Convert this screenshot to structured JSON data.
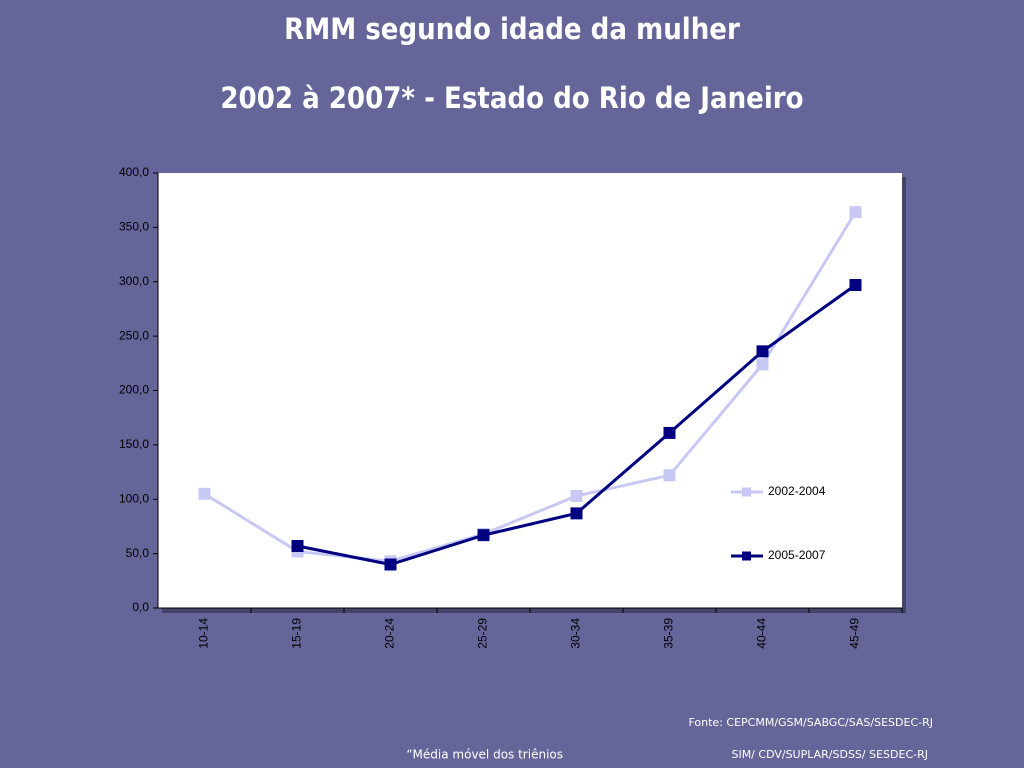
{
  "chart_data": {
    "type": "line",
    "title": "RMM segundo idade da mulher",
    "subtitle": "2002 à 2007* - Estado do Rio de Janeiro",
    "categories": [
      "10-14",
      "15-19",
      "20-24",
      "25-29",
      "30-34",
      "35-39",
      "40-44",
      "45-49"
    ],
    "series": [
      {
        "name": "2002-2004",
        "color": "#c8c8f4",
        "values": [
          105,
          52,
          43,
          68,
          103,
          122,
          224,
          364
        ]
      },
      {
        "name": "2005-2007",
        "color": "#000080",
        "values": [
          null,
          57,
          40,
          67,
          87,
          161,
          236,
          297
        ]
      }
    ],
    "ylim": [
      0,
      400
    ],
    "yticks": [
      {
        "value": 0,
        "label": "0,0"
      },
      {
        "value": 50,
        "label": "50,0"
      },
      {
        "value": 100,
        "label": "100,0"
      },
      {
        "value": 150,
        "label": "150,0"
      },
      {
        "value": 200,
        "label": "200,0"
      },
      {
        "value": 250,
        "label": "250,0"
      },
      {
        "value": 300,
        "label": "300,0"
      },
      {
        "value": 350,
        "label": "350,0"
      },
      {
        "value": 400,
        "label": "400,0"
      }
    ],
    "grid": false,
    "legend": "right",
    "annotations": [
      "Fonte: CEPCMM/GSM/SABGC/SAS/SESDEC-RJ",
      "“Média móvel dos triênios",
      "SIM/ CDV/SUPLAR/SDSS/ SESDEC-RJ"
    ]
  }
}
